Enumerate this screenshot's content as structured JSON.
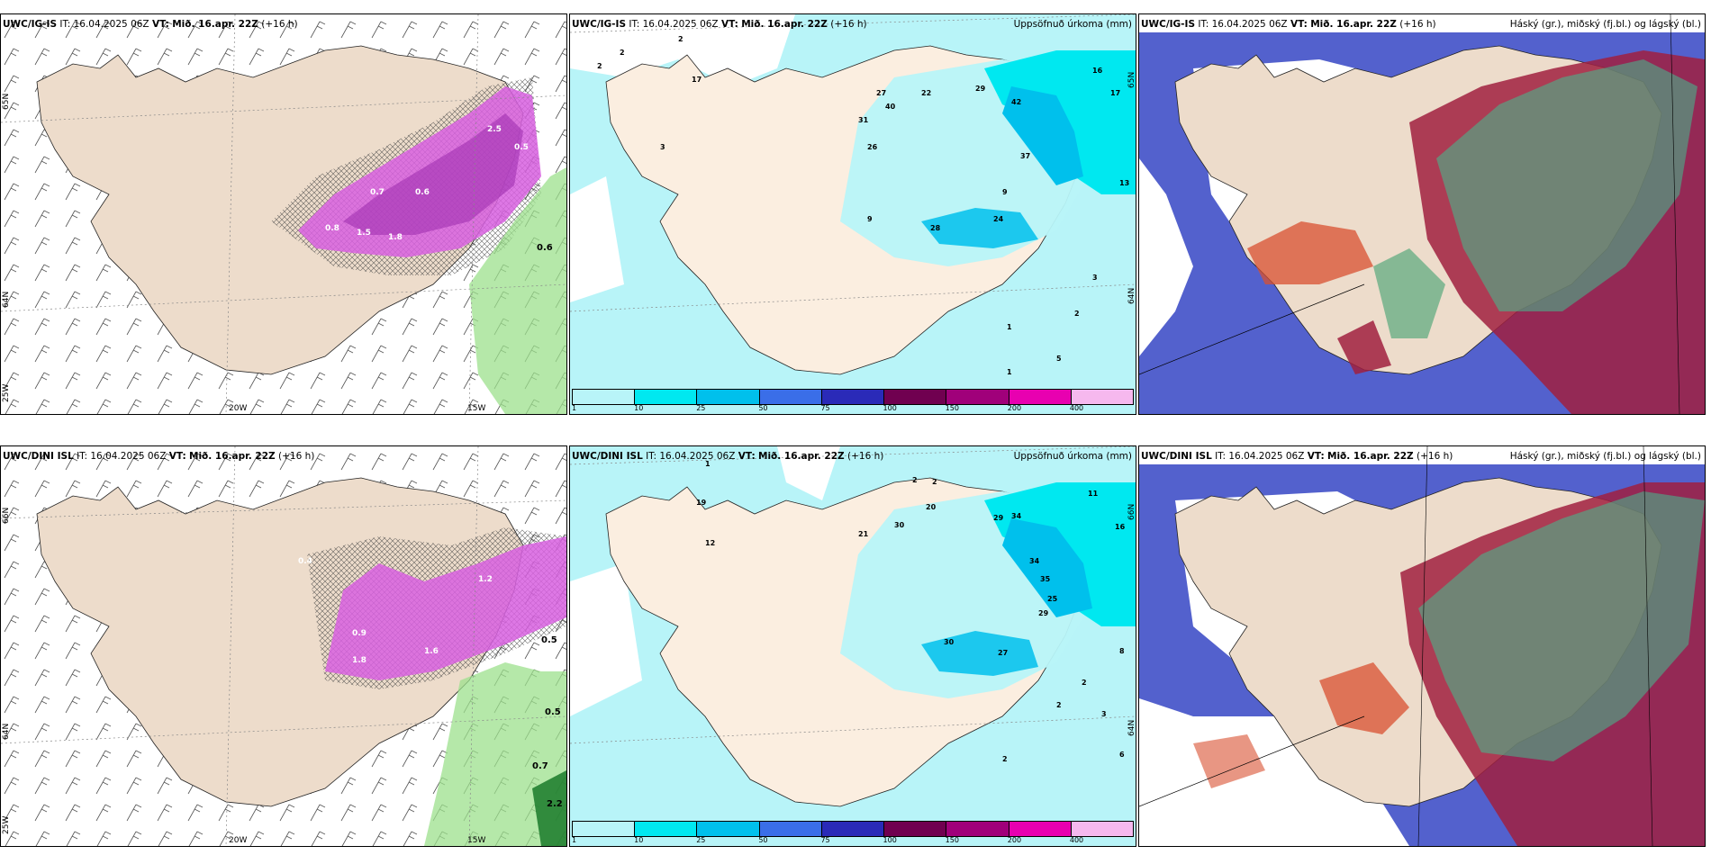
{
  "panels": [
    {
      "model": "UWC/IG-IS",
      "it_label": "IT:",
      "it_value": "16.04.2025 06Z",
      "vt_label": "VT:",
      "vt_value": "Mið. 16.apr. 22Z",
      "lead": "(+16 h)",
      "right_title": "",
      "lat_labels": [
        "65N",
        "64N"
      ],
      "lon_labels": [
        "20W",
        "15W"
      ],
      "corner_label": "25W",
      "values": [
        "0.8",
        "1.5",
        "1.8",
        "0.6",
        "2.5",
        "0.5",
        "0.7",
        "0.6"
      ]
    },
    {
      "model": "UWC/IG-IS",
      "it_label": "IT:",
      "it_value": "16.04.2025 06Z",
      "vt_label": "VT:",
      "vt_value": "Mið. 16.apr. 22Z",
      "lead": "(+16 h)",
      "right_title": "Uppsöfnuð úrkoma (mm)",
      "lat_labels": [
        "65N",
        "64N"
      ],
      "values": [
        "2",
        "2",
        "2",
        "17",
        "27",
        "40",
        "22",
        "29",
        "42",
        "16",
        "17",
        "31",
        "26",
        "37",
        "13",
        "9",
        "28",
        "24",
        "9",
        "3",
        "2",
        "1",
        "1",
        "5",
        "3"
      ]
    },
    {
      "model": "UWC/IG-IS",
      "it_label": "IT:",
      "it_value": "16.04.2025 06Z",
      "vt_label": "VT:",
      "vt_value": "Mið. 16.apr. 22Z",
      "lead": "(+16 h)",
      "right_title": "Háský (gr.), miðský (fj.bl.) og lágský (bl.)"
    },
    {
      "model": "UWC/DINI ISL",
      "it_label": "IT:",
      "it_value": "16.04.2025 06Z",
      "vt_label": "VT:",
      "vt_value": "Mið. 16.apr. 22Z",
      "lead": "(+16 h)",
      "right_title": "",
      "lat_labels": [
        "66N",
        "64N"
      ],
      "lon_labels": [
        "20W",
        "15W"
      ],
      "corner_label": "25W",
      "values": [
        "0.4",
        "0.9",
        "1.8",
        "1.6",
        "1.2",
        "0.5",
        "0.5",
        "0.7",
        "2.2"
      ]
    },
    {
      "model": "UWC/DINI ISL",
      "it_label": "IT:",
      "it_value": "16.04.2025 06Z",
      "vt_label": "VT:",
      "vt_value": "Mið. 16.apr. 22Z",
      "lead": "(+16 h)",
      "right_title": "Uppsöfnuð úrkoma (mm)",
      "lat_labels": [
        "66N",
        "64N"
      ],
      "values": [
        "1",
        "2",
        "2",
        "19",
        "12",
        "21",
        "30",
        "20",
        "29",
        "34",
        "11",
        "16",
        "34",
        "35",
        "25",
        "29",
        "30",
        "27",
        "8",
        "2",
        "2",
        "3",
        "6",
        "2"
      ]
    },
    {
      "model": "UWC/DINI ISL",
      "it_label": "IT:",
      "it_value": "16.04.2025 06Z",
      "vt_label": "VT:",
      "vt_value": "Mið. 16.apr. 22Z",
      "lead": "(+16 h)",
      "right_title": "Háský (gr.), miðský (fj.bl.) og lágský (bl.)"
    }
  ],
  "colorbar": {
    "ticks": [
      "1",
      "10",
      "25",
      "50",
      "75",
      "100",
      "150",
      "200",
      "400"
    ],
    "colors": [
      "#b8f4f8",
      "#00e8f0",
      "#00c0ec",
      "#3a6ee8",
      "#2a2ab8",
      "#700050",
      "#a0007a",
      "#e800b0",
      "#f6b8ee"
    ]
  },
  "colors": {
    "land": "#eddccb",
    "precip_light": "#b8f4f8",
    "precip_mid": "#00e8f0",
    "snow_purple": "#d860e0",
    "rain_green": "#9ce08c",
    "high_cloud": "#40c090",
    "mid_cloud": "#a02040",
    "low_cloud": "#4050c8"
  }
}
